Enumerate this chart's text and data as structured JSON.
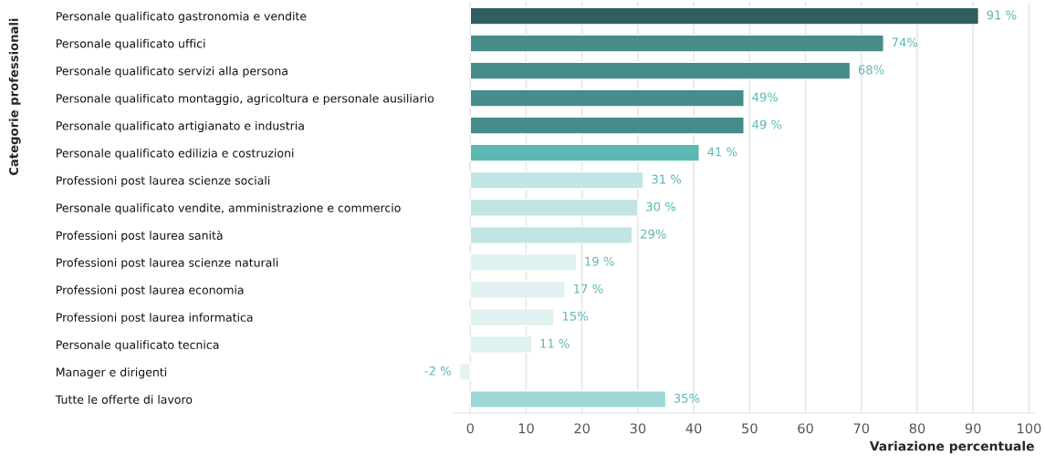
{
  "chart_data": {
    "type": "bar",
    "orientation": "horizontal",
    "ylabel": "Categorie professionali",
    "xlabel": "Variazione percentuale",
    "categories": [
      "Personale qualificato gastronomia e vendite",
      "Personale qualificato uffici",
      "Personale qualificato servizi alla persona",
      "Personale qualificato montaggio, agricoltura e personale ausiliario",
      "Personale qualificato artigianato e industria",
      "Personale qualificato edilizia e costruzioni",
      "Professioni post laurea scienze sociali",
      "Personale qualificato vendite, amministrazione e commercio",
      "Professioni post laurea sanità",
      "Professioni post laurea scienze naturali",
      "Professioni post laurea economia",
      "Professioni post laurea informatica",
      "Personale qualificato tecnica",
      "Manager e dirigenti",
      "Tutte le offerte di lavoro"
    ],
    "values": [
      91,
      74,
      68,
      49,
      49,
      41,
      31,
      30,
      29,
      19,
      17,
      15,
      11,
      -2,
      35
    ],
    "value_labels": [
      "91 %",
      "74%",
      "68%",
      "49%",
      "49 %",
      "41 %",
      "31 %",
      "30 %",
      "29%",
      "19 %",
      "17 %",
      "15%",
      "11 %",
      "-2 %",
      "35%"
    ],
    "colors": [
      "#2f5f5e",
      "#468c8a",
      "#468c8a",
      "#468c8a",
      "#468c8a",
      "#5bb8b3",
      "#c0e5e3",
      "#c0e5e3",
      "#c0e5e3",
      "#dff1f0",
      "#dff1f0",
      "#dff1f0",
      "#dff1f0",
      "#e6f3f3",
      "#9dd8d5"
    ],
    "xlim": [
      -3,
      101
    ],
    "xticks": [
      0,
      10,
      20,
      30,
      40,
      50,
      60,
      70,
      80,
      90,
      100
    ],
    "grid": "x"
  }
}
